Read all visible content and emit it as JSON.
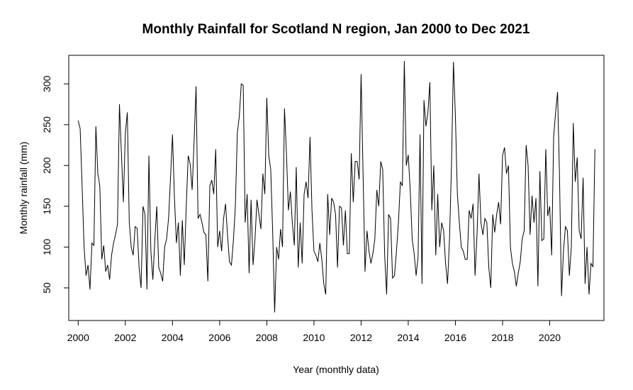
{
  "chart_data": {
    "type": "line",
    "title": "Monthly Rainfall for Scotland N region, Jan 2000 to Dec 2021",
    "xlabel": "Year (monthly data)",
    "ylabel": "Monthly rainfall (mm)",
    "x_start": 2000,
    "x_step": 0.0833333,
    "xlim": [
      1999.6,
      2022.3
    ],
    "ylim": [
      10,
      335
    ],
    "x_ticks": [
      2000,
      2002,
      2004,
      2006,
      2008,
      2010,
      2012,
      2014,
      2016,
      2018,
      2020
    ],
    "x_tick_labels": [
      "2000",
      "2002",
      "2004",
      "2006",
      "2008",
      "2010",
      "2012",
      "2014",
      "2016",
      "2018",
      "2020"
    ],
    "y_ticks": [
      50,
      100,
      150,
      200,
      250,
      300
    ],
    "y_tick_labels": [
      "50",
      "100",
      "150",
      "200",
      "250",
      "300"
    ],
    "grid": false,
    "series": [
      {
        "values": [
          255,
          245,
          175,
          100,
          65,
          78,
          48,
          105,
          102,
          248,
          190,
          175,
          85,
          102,
          70,
          78,
          60,
          90,
          105,
          115,
          128,
          275,
          215,
          155,
          240,
          265,
          130,
          100,
          90,
          125,
          123,
          75,
          50,
          150,
          140,
          48,
          212,
          95,
          60,
          108,
          150,
          75,
          68,
          58,
          100,
          110,
          135,
          185,
          238,
          160,
          105,
          130,
          65,
          133,
          78,
          150,
          212,
          202,
          170,
          230,
          297,
          135,
          140,
          130,
          118,
          115,
          58,
          175,
          182,
          165,
          220,
          100,
          120,
          95,
          135,
          153,
          115,
          82,
          78,
          108,
          150,
          240,
          260,
          300,
          298,
          130,
          165,
          68,
          158,
          78,
          110,
          158,
          140,
          122,
          190,
          165,
          283,
          212,
          195,
          118,
          20,
          100,
          85,
          122,
          100,
          270,
          215,
          145,
          168,
          130,
          102,
          198,
          75,
          130,
          80,
          165,
          180,
          160,
          235,
          145,
          95,
          90,
          82,
          105,
          85,
          55,
          42,
          165,
          115,
          160,
          155,
          140,
          75,
          150,
          148,
          102,
          145,
          92,
          92,
          215,
          155,
          205,
          205,
          183,
          312,
          190,
          70,
          120,
          95,
          80,
          92,
          110,
          170,
          150,
          205,
          195,
          90,
          42,
          140,
          135,
          62,
          65,
          95,
          130,
          180,
          175,
          328,
          200,
          213,
          170,
          110,
          92,
          65,
          88,
          238,
          55,
          280,
          248,
          265,
          302,
          145,
          200,
          90,
          165,
          100,
          130,
          120,
          80,
          55,
          110,
          200,
          327,
          260,
          165,
          130,
          100,
          95,
          85,
          85,
          145,
          135,
          153,
          65,
          115,
          190,
          130,
          115,
          135,
          130,
          75,
          50,
          140,
          118,
          140,
          155,
          128,
          212,
          222,
          190,
          200,
          100,
          80,
          70,
          52,
          68,
          82,
          110,
          120,
          225,
          200,
          115,
          163,
          130,
          160,
          52,
          193,
          108,
          110,
          220,
          138,
          150,
          90,
          235,
          265,
          290,
          185,
          40,
          95,
          125,
          120,
          65,
          100,
          252,
          180,
          210,
          120,
          110,
          185,
          55,
          100,
          42,
          80,
          76,
          220
        ]
      }
    ]
  }
}
